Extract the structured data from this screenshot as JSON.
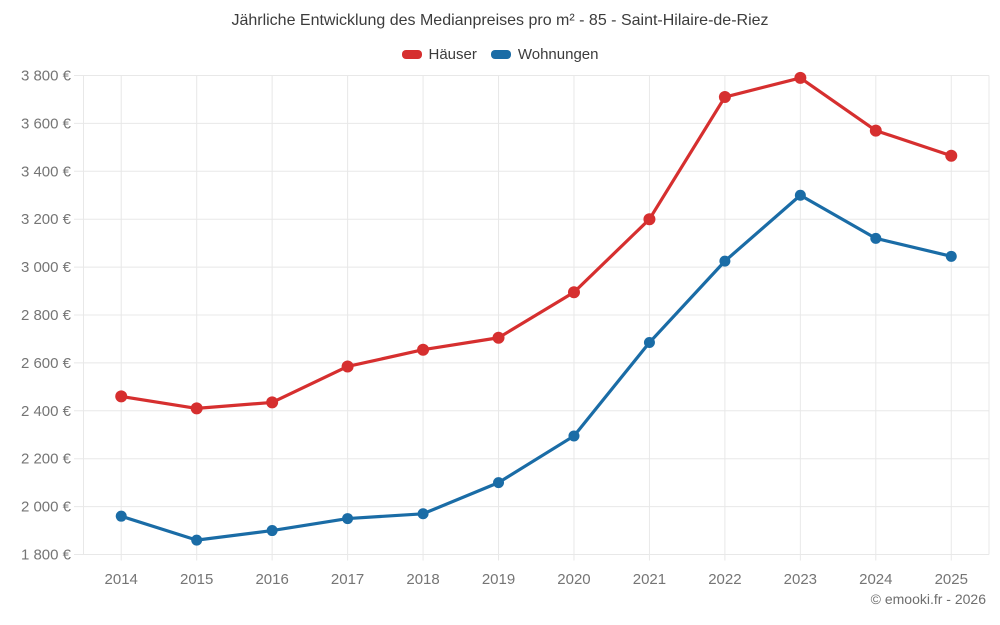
{
  "title": "Jährliche Entwicklung des Medianpreises pro m² - 85 - Saint-Hilaire-de-Riez",
  "legend": [
    {
      "label": "Häuser",
      "color": "#d62f2f"
    },
    {
      "label": "Wohnungen",
      "color": "#1a6ca6"
    }
  ],
  "attribution": "© emooki.fr - 2026",
  "chart_data": {
    "type": "line",
    "title": "Jährliche Entwicklung des Medianpreises pro m² - 85 - Saint-Hilaire-de-Riez",
    "categories": [
      "2014",
      "2015",
      "2016",
      "2017",
      "2018",
      "2019",
      "2020",
      "2021",
      "2022",
      "2023",
      "2024",
      "2025"
    ],
    "series": [
      {
        "name": "Häuser",
        "color": "#d62f2f",
        "marker_radius": 6,
        "values": [
          2460,
          2410,
          2435,
          2585,
          2655,
          2705,
          2895,
          3200,
          3710,
          3790,
          3570,
          3465
        ]
      },
      {
        "name": "Wohnungen",
        "color": "#1a6ca6",
        "marker_radius": 5.5,
        "values": [
          1960,
          1860,
          1900,
          1950,
          1970,
          2100,
          2295,
          2685,
          3025,
          3300,
          3120,
          3045
        ]
      }
    ],
    "xlabel": "",
    "ylabel": "",
    "ylim": [
      1800,
      3800
    ],
    "y_tick_step": 200,
    "y_ticks": [
      {
        "value": 1800,
        "label": "1 800 €"
      },
      {
        "value": 2000,
        "label": "2 000 €"
      },
      {
        "value": 2200,
        "label": "2 200 €"
      },
      {
        "value": 2400,
        "label": "2 400 €"
      },
      {
        "value": 2600,
        "label": "2 600 €"
      },
      {
        "value": 2800,
        "label": "2 800 €"
      },
      {
        "value": 3000,
        "label": "3 000 €"
      },
      {
        "value": 3200,
        "label": "3 200 €"
      },
      {
        "value": 3400,
        "label": "3 400 €"
      },
      {
        "value": 3600,
        "label": "3 600 €"
      },
      {
        "value": 3800,
        "label": "3 800 €"
      }
    ],
    "grid": true,
    "grid_color": "#e8e8e8",
    "tick_label_color": "#757575",
    "legend_position": "top"
  }
}
